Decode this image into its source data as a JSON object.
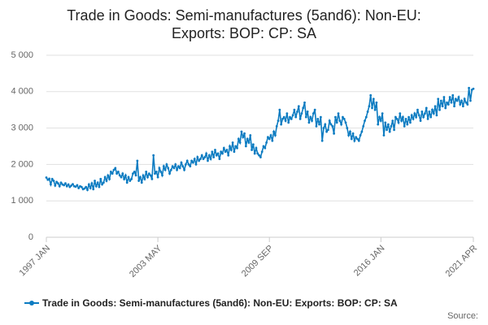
{
  "chart_data": {
    "type": "line",
    "title": "Trade in Goods: Semi-manufactures (5and6): Non-EU: Exports: BOP: CP: SA",
    "source": "Source:",
    "categories": [
      "1997 JAN",
      null,
      null,
      null,
      null,
      null,
      null,
      null,
      null,
      null,
      null,
      null,
      null,
      null,
      null,
      null,
      null,
      null,
      null,
      null,
      null,
      null,
      null,
      null,
      null,
      null,
      null,
      null,
      null,
      null,
      null,
      null,
      null,
      null,
      null,
      null,
      null,
      null,
      null,
      null,
      null,
      null,
      null,
      null,
      null,
      null,
      null,
      null,
      null,
      null,
      null,
      null,
      null,
      null,
      null,
      null,
      null,
      null,
      null,
      null,
      null,
      null,
      null,
      null,
      null,
      null,
      null,
      null,
      null,
      null,
      null,
      null,
      null,
      null,
      null,
      null,
      "2003 MAY",
      null,
      null,
      null,
      null,
      null,
      null,
      null,
      null,
      null,
      null,
      null,
      null,
      null,
      null,
      null,
      null,
      null,
      null,
      null,
      null,
      null,
      null,
      null,
      null,
      null,
      null,
      null,
      null,
      null,
      null,
      null,
      null,
      null,
      null,
      null,
      null,
      null,
      null,
      null,
      null,
      null,
      null,
      null,
      null,
      null,
      null,
      null,
      null,
      null,
      null,
      null,
      null,
      null,
      null,
      null,
      null,
      null,
      null,
      null,
      null,
      null,
      null,
      null,
      null,
      null,
      null,
      null,
      null,
      null,
      null,
      null,
      null,
      null,
      null,
      null,
      "2009 SEP",
      null,
      null,
      null,
      null,
      null,
      null,
      null,
      null,
      null,
      null,
      null,
      null,
      null,
      null,
      null,
      null,
      null,
      null,
      null,
      null,
      null,
      null,
      null,
      null,
      null,
      null,
      null,
      null,
      null,
      null,
      null,
      null,
      null,
      null,
      null,
      null,
      null,
      null,
      null,
      null,
      null,
      null,
      null,
      null,
      null,
      null,
      null,
      null,
      null,
      null,
      null,
      null,
      null,
      null,
      null,
      null,
      null,
      null,
      null,
      null,
      null,
      null,
      null,
      null,
      null,
      null,
      null,
      null,
      null,
      null,
      null,
      null,
      null,
      null,
      null,
      "2016 JAN",
      null,
      null,
      null,
      null,
      null,
      null,
      null,
      null,
      null,
      null,
      null,
      null,
      null,
      null,
      null,
      null,
      null,
      null,
      null,
      null,
      null,
      null,
      null,
      null,
      null,
      null,
      null,
      null,
      null,
      null,
      null,
      null,
      null,
      null,
      null,
      null,
      null,
      null,
      null,
      null,
      null,
      null,
      null,
      null,
      null,
      null,
      null,
      null,
      null,
      null,
      null,
      null,
      null,
      null,
      null,
      null,
      null,
      null,
      null,
      null,
      null,
      null,
      "2021 APR"
    ],
    "series": [
      {
        "name": "Trade in Goods: Semi-manufactures (5and6): Non-EU: Exports: BOP: CP: SA",
        "color": "#0b7bc1",
        "values": [
          1640,
          1580,
          1610,
          1450,
          1600,
          1550,
          1420,
          1520,
          1480,
          1400,
          1500,
          1450,
          1430,
          1480,
          1400,
          1450,
          1380,
          1420,
          1460,
          1400,
          1390,
          1430,
          1350,
          1400,
          1380,
          1320,
          1340,
          1380,
          1300,
          1450,
          1350,
          1480,
          1320,
          1550,
          1400,
          1500,
          1380,
          1600,
          1450,
          1500,
          1650,
          1550,
          1700,
          1600,
          1800,
          1750,
          1850,
          1900,
          1750,
          1800,
          1700,
          1650,
          1750,
          1600,
          1700,
          1500,
          1650,
          1550,
          1600,
          1750,
          1800,
          1700,
          2100,
          1550,
          1650,
          1500,
          1700,
          1600,
          1800,
          1650,
          1750,
          1700,
          1600,
          2250,
          1750,
          1800,
          1650,
          1900,
          1800,
          1700,
          1950,
          1850,
          2000,
          1900,
          1750,
          1850,
          1950,
          1900,
          2000,
          1850,
          1950,
          1900,
          2050,
          1950,
          1850,
          2000,
          2100,
          2000,
          1950,
          2100,
          2050,
          2150,
          2000,
          2200,
          2100,
          2150,
          2250,
          2150,
          2200,
          2300,
          2100,
          2250,
          2150,
          2350,
          2200,
          2400,
          2250,
          2300,
          2150,
          2350,
          2300,
          2450,
          2350,
          2400,
          2250,
          2500,
          2400,
          2600,
          2350,
          2500,
          2450,
          2700,
          2600,
          2900,
          2750,
          2850,
          2500,
          2700,
          2600,
          2800,
          2400,
          2550,
          2300,
          2450,
          2300,
          2250,
          2200,
          2350,
          2500,
          2450,
          2600,
          2750,
          2700,
          2800,
          2650,
          2900,
          2800,
          3050,
          3200,
          3500,
          3100,
          3250,
          3300,
          3200,
          3400,
          3150,
          3300,
          3250,
          3350,
          3500,
          3300,
          3450,
          3600,
          3250,
          3400,
          3550,
          3700,
          3300,
          3450,
          3150,
          3300,
          3200,
          3400,
          3500,
          3050,
          3250,
          3100,
          3300,
          2650,
          3000,
          3100,
          2900,
          2950,
          3200,
          3100,
          3050,
          2850,
          3300,
          3150,
          3400,
          3200,
          3100,
          3300,
          3250,
          3150,
          3000,
          2800,
          2900,
          2700,
          2850,
          2650,
          2750,
          2700,
          2650,
          2800,
          2900,
          3050,
          3200,
          3300,
          3450,
          3600,
          3900,
          3550,
          3800,
          3500,
          3700,
          3100,
          3300,
          3200,
          3400,
          2800,
          3150,
          2950,
          3100,
          2900,
          3050,
          3200,
          2950,
          3300,
          3250,
          3150,
          3400,
          3200,
          3300,
          3050,
          3250,
          3100,
          3300,
          3150,
          3350,
          3250,
          3400,
          3300,
          3500,
          3350,
          3200,
          3450,
          3300,
          3400,
          3550,
          3250,
          3450,
          3300,
          3500,
          3400,
          3600,
          3350,
          3800,
          3500,
          3750,
          3600,
          3850,
          3550,
          3700,
          3650,
          3850,
          3700,
          3900,
          3600,
          3800,
          3750,
          3850,
          3650,
          3750,
          3600,
          3800,
          3700,
          3650,
          4100,
          3750,
          4050,
          4080
        ]
      }
    ],
    "ylim": [
      0,
      5000
    ],
    "yticks": [
      0,
      {
        "value": 1000,
        "label": "1 000"
      },
      {
        "value": 2000,
        "label": "2 000"
      },
      {
        "value": 3000,
        "label": "3 000"
      },
      {
        "value": 4000,
        "label": "4 000"
      },
      {
        "value": 5000,
        "label": "5 000"
      }
    ],
    "grid": true
  }
}
